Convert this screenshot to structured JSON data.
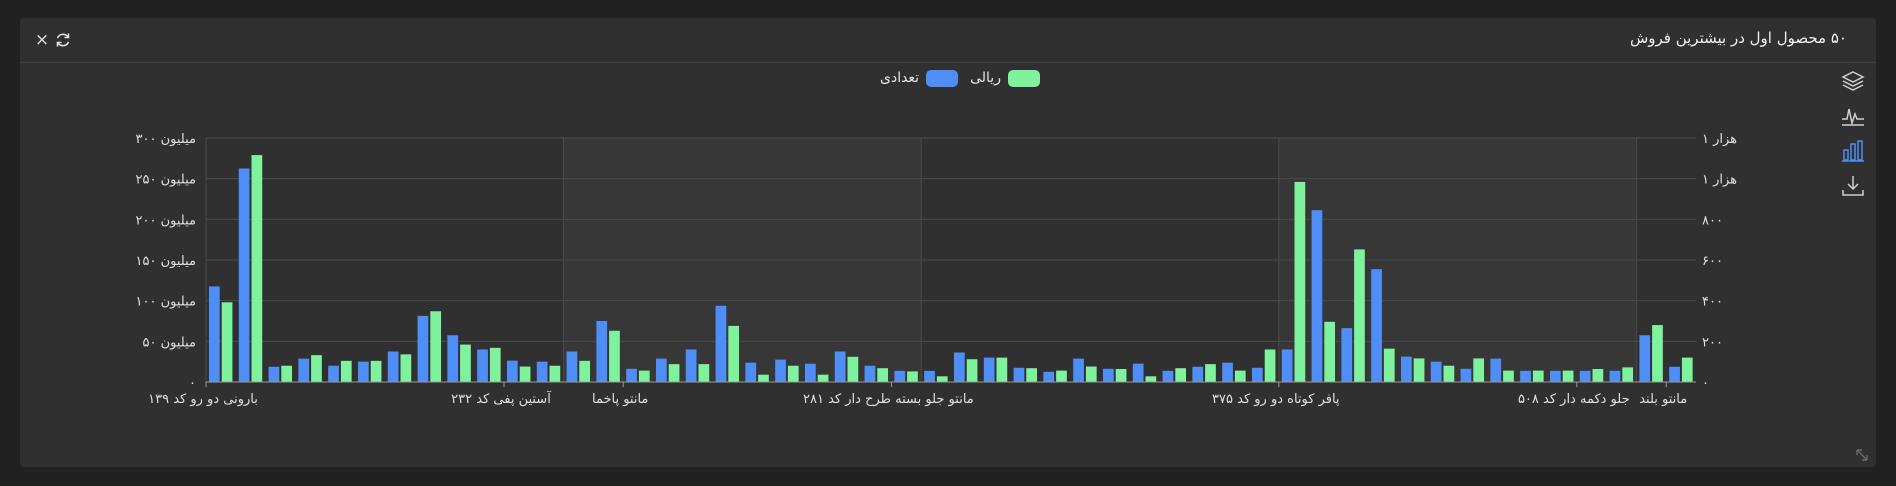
{
  "header": {
    "title": "۵۰ محصول اول در بیشترین فروش",
    "close_label": "×"
  },
  "toolbar": {
    "items": [
      {
        "name": "layers-icon"
      },
      {
        "name": "line-chart-icon"
      },
      {
        "name": "bar-chart-icon"
      },
      {
        "name": "download-icon"
      }
    ]
  },
  "colors": {
    "series_count": "#4f8ef7",
    "series_rial": "#7ef29d",
    "bar_chart_icon_active": "#4f8ef7"
  },
  "legend": {
    "rial": "ریالی",
    "count": "تعدادی"
  },
  "chart_data": {
    "type": "bar",
    "categories_count": 50,
    "x_tick_labels": [
      {
        "index": 1,
        "label": "بارونی دو رو کد ۱۳۹"
      },
      {
        "index": 11,
        "label": "آستین پفی کد ۲۳۲"
      },
      {
        "index": 15,
        "label": "مانتو پاخما"
      },
      {
        "index": 24,
        "label": "مانتو جلو بسته طرح دار کد ۲۸۱"
      },
      {
        "index": 37,
        "label": "پافر کوتاه دو رو کد ۳۷۵"
      },
      {
        "index": 47,
        "label": "جلو دکمه دار کد ۵۰۸"
      },
      {
        "index": 50,
        "label": "مانتو بلند"
      }
    ],
    "y_left": {
      "ticks": [
        "۰",
        "۵۰ میلیون",
        "۱۰۰ میلیون",
        "۱۵۰ میلیون",
        "۲۰۰ میلیون",
        "۲۵۰ میلیون",
        "۳۰۰ میلیون"
      ],
      "range": [
        0,
        300000000
      ]
    },
    "y_right": {
      "ticks": [
        "۰",
        "۲۰۰",
        "۴۰۰",
        "۶۰۰",
        "۸۰۰",
        "هزار ۱",
        "هزار ۱"
      ],
      "range": [
        0,
        1200
      ]
    },
    "grid": true,
    "legend_position": "top",
    "series": [
      {
        "name": "تعدادی",
        "axis": "right",
        "values": [
          470,
          1050,
          75,
          115,
          80,
          100,
          150,
          325,
          230,
          160,
          105,
          100,
          150,
          300,
          65,
          115,
          160,
          375,
          95,
          110,
          90,
          150,
          80,
          55,
          55,
          145,
          120,
          70,
          50,
          115,
          65,
          90,
          55,
          75,
          95,
          70,
          160,
          845,
          265,
          555,
          125,
          100,
          65,
          115,
          55,
          55,
          55,
          55,
          230,
          75
        ]
      },
      {
        "name": "ریالی",
        "axis": "left",
        "values": [
          98000000,
          279000000,
          20000000,
          33000000,
          26000000,
          26000000,
          34000000,
          87000000,
          46000000,
          42000000,
          19000000,
          20000000,
          26000000,
          63000000,
          14000000,
          22000000,
          22000000,
          69000000,
          9000000,
          20000000,
          9000000,
          31000000,
          17000000,
          13000000,
          7000000,
          28000000,
          30000000,
          17000000,
          14000000,
          19000000,
          16000000,
          7000000,
          17000000,
          22000000,
          14000000,
          40000000,
          246000000,
          74000000,
          163000000,
          41000000,
          29000000,
          20000000,
          29000000,
          14000000,
          14000000,
          14000000,
          16000000,
          18000000,
          70000000,
          30000000
        ]
      }
    ]
  }
}
